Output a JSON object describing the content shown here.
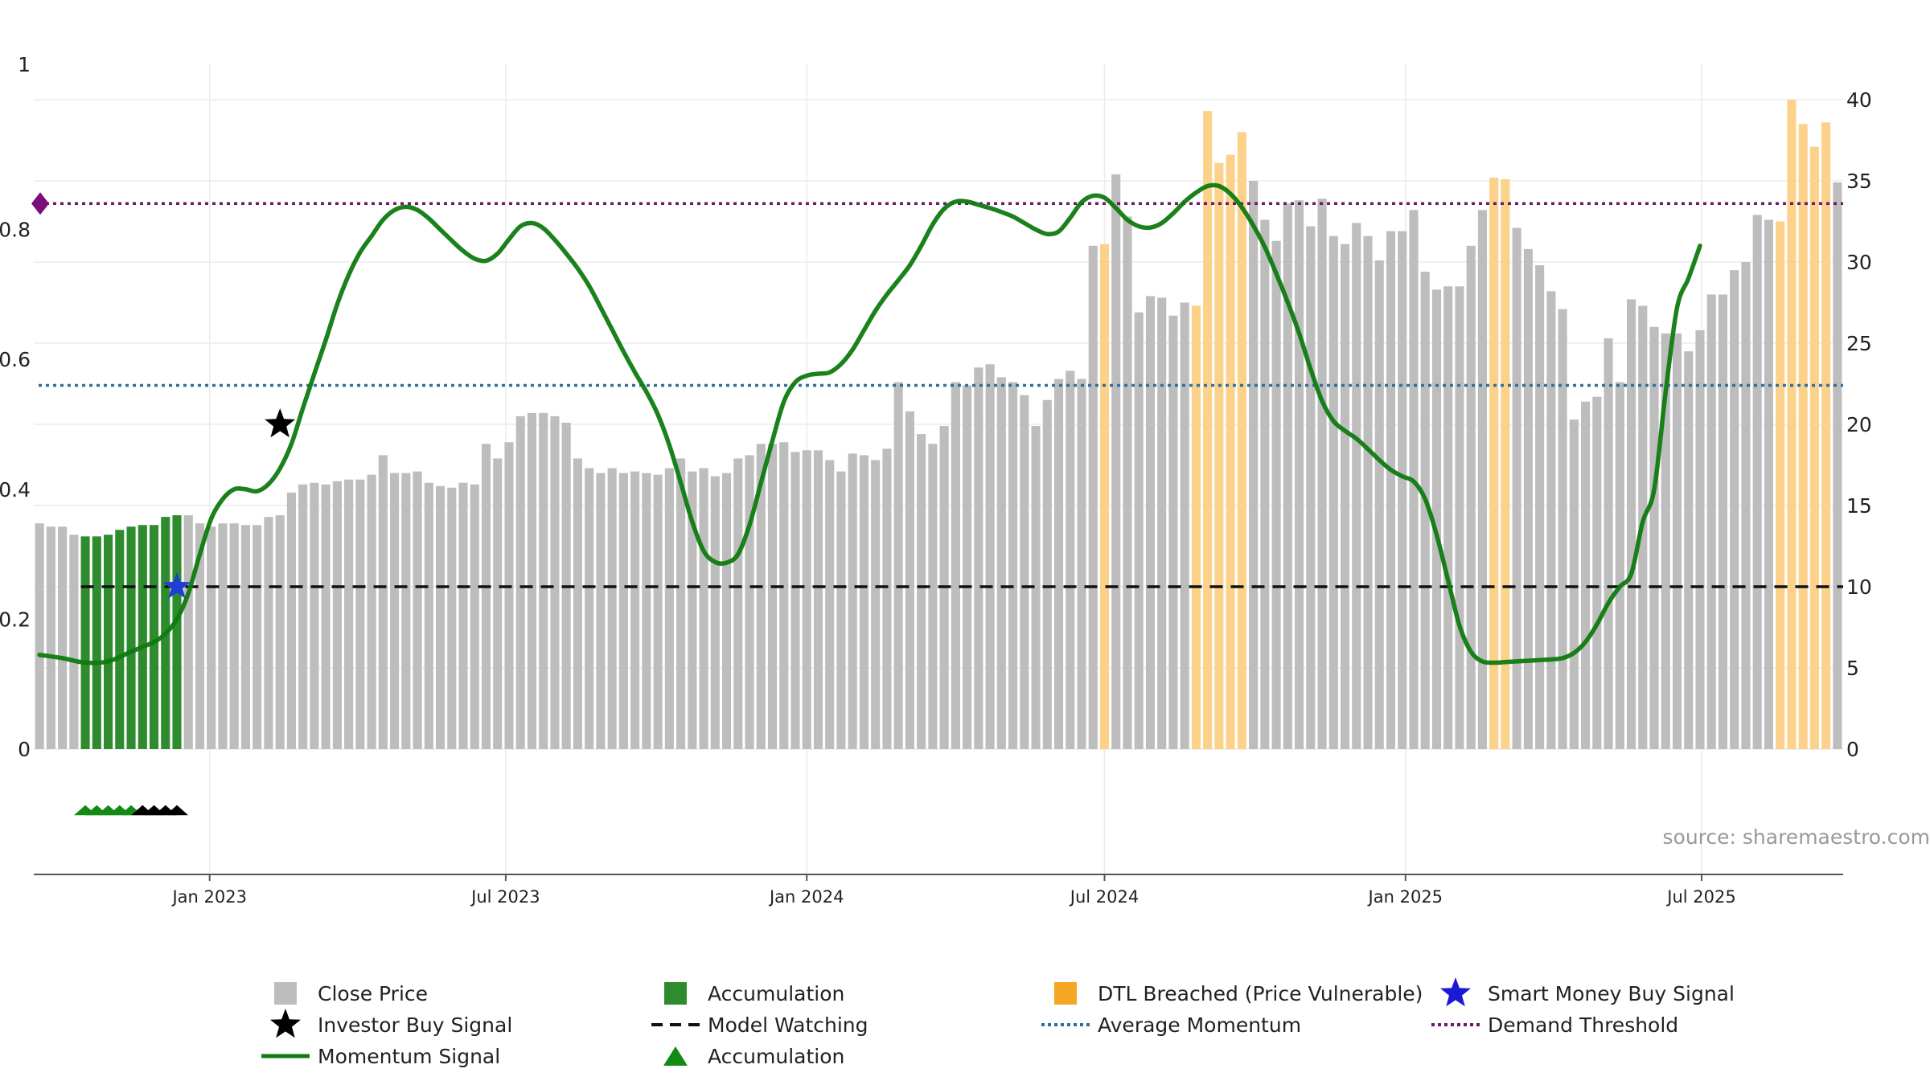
{
  "chart_data": {
    "type": "bar",
    "source_note": "source: sharemaestro.com",
    "left_axis": {
      "ylim": [
        0,
        1
      ],
      "ticks": [
        "0",
        "0.2",
        "0.4",
        "0.6",
        "0.8",
        "1"
      ]
    },
    "right_axis": {
      "ylim": [
        0,
        40
      ],
      "ticks": [
        "0",
        "5",
        "10",
        "15",
        "20",
        "25",
        "30",
        "35",
        "40"
      ]
    },
    "x_axis": {
      "start": "2022-09-19",
      "end": "2025-09-15",
      "ticks": [
        {
          "date": "2023-01-01",
          "label": "Jan 2023"
        },
        {
          "date": "2023-07-01",
          "label": "Jul 2023"
        },
        {
          "date": "2024-01-01",
          "label": "Jan 2024"
        },
        {
          "date": "2024-07-01",
          "label": "Jul 2024"
        },
        {
          "date": "2025-01-01",
          "label": "Jan 2025"
        },
        {
          "date": "2025-07-01",
          "label": "Jul 2025"
        }
      ]
    },
    "grid": true,
    "legend_placement": "bottom",
    "colors": {
      "close": "#bdbdbd",
      "accumulation": "#2e8b2e",
      "dtl": "#fcd28a",
      "momentum": "#0f7a0f",
      "average": "#2f6f99",
      "demand": "#6b1a6b",
      "watching": "#111111",
      "smart_money": "#1f3fd0",
      "investor": "#000000",
      "marker_green": "#138a13",
      "marker_black": "#000000",
      "demand_marker": "#7a0f7a"
    },
    "bars": {
      "name": "Close Price",
      "start_date": "2022-09-19",
      "interval_days": 7,
      "close_prices": [
        13.9,
        13.7,
        13.7,
        13.2,
        13.1,
        13.1,
        13.2,
        13.5,
        13.7,
        13.8,
        13.8,
        14.3,
        14.4,
        14.4,
        13.9,
        13.7,
        13.9,
        13.9,
        13.8,
        13.8,
        14.3,
        14.4,
        15.8,
        16.3,
        16.4,
        16.3,
        16.5,
        16.6,
        16.6,
        16.9,
        18.1,
        17.0,
        17.0,
        17.1,
        16.4,
        16.2,
        16.1,
        16.4,
        16.3,
        18.8,
        17.9,
        18.9,
        20.5,
        20.7,
        20.7,
        20.5,
        20.1,
        17.9,
        17.3,
        17.0,
        17.3,
        17.0,
        17.1,
        17.0,
        16.9,
        17.3,
        17.9,
        17.1,
        17.3,
        16.8,
        17.0,
        17.9,
        18.1,
        18.8,
        18.8,
        18.9,
        18.3,
        18.4,
        18.4,
        17.8,
        17.1,
        18.2,
        18.1,
        17.8,
        18.5,
        22.6,
        20.8,
        19.4,
        18.8,
        19.9,
        22.6,
        22.4,
        23.5,
        23.7,
        22.9,
        22.6,
        21.8,
        19.9,
        21.5,
        22.8,
        23.3,
        22.8,
        31.0,
        31.1,
        35.4,
        32.8,
        26.9,
        27.9,
        27.8,
        26.7,
        27.5,
        27.3,
        39.3,
        36.1,
        36.6,
        38.0,
        35.0,
        32.6,
        31.3,
        33.6,
        33.8,
        32.2,
        33.9,
        31.6,
        31.1,
        32.4,
        31.6,
        30.1,
        31.9,
        31.9,
        33.2,
        29.4,
        28.3,
        28.5,
        28.5,
        31.0,
        33.2,
        35.2,
        35.1,
        32.1,
        30.8,
        29.8,
        28.2,
        27.1,
        20.3,
        21.4,
        21.7,
        25.3,
        22.6,
        27.7,
        27.3,
        26.0,
        25.6,
        25.6,
        24.5,
        25.8,
        28.0,
        28.0,
        29.5,
        30.0,
        32.9,
        32.6,
        32.5,
        40.0,
        38.5,
        37.1,
        38.6,
        34.9
      ],
      "accumulation_index": [
        4,
        5,
        6,
        7,
        8,
        9,
        10,
        11,
        12
      ],
      "dtl_breached_index": [
        93,
        101,
        102,
        103,
        104,
        105,
        127,
        128,
        152,
        153,
        154,
        155,
        156
      ]
    },
    "momentum": {
      "name": "Momentum Signal",
      "points": [
        [
          0,
          0.145
        ],
        [
          2,
          0.14
        ],
        [
          4,
          0.133
        ],
        [
          6,
          0.135
        ],
        [
          8,
          0.15
        ],
        [
          10,
          0.165
        ],
        [
          11,
          0.178
        ],
        [
          12,
          0.2
        ],
        [
          13,
          0.24
        ],
        [
          14,
          0.3
        ],
        [
          15,
          0.355
        ],
        [
          16,
          0.385
        ],
        [
          17,
          0.4
        ],
        [
          18,
          0.4
        ],
        [
          19,
          0.397
        ],
        [
          20,
          0.408
        ],
        [
          21,
          0.432
        ],
        [
          22,
          0.47
        ],
        [
          23,
          0.525
        ],
        [
          24,
          0.578
        ],
        [
          25,
          0.63
        ],
        [
          26,
          0.685
        ],
        [
          27,
          0.73
        ],
        [
          28,
          0.765
        ],
        [
          29,
          0.79
        ],
        [
          30,
          0.815
        ],
        [
          31,
          0.83
        ],
        [
          32,
          0.835
        ],
        [
          33,
          0.83
        ],
        [
          34,
          0.817
        ],
        [
          35,
          0.8
        ],
        [
          36,
          0.783
        ],
        [
          37,
          0.767
        ],
        [
          38,
          0.755
        ],
        [
          39,
          0.752
        ],
        [
          40,
          0.763
        ],
        [
          41,
          0.785
        ],
        [
          42,
          0.805
        ],
        [
          43,
          0.81
        ],
        [
          44,
          0.802
        ],
        [
          45,
          0.784
        ],
        [
          46,
          0.763
        ],
        [
          47,
          0.74
        ],
        [
          48,
          0.713
        ],
        [
          49,
          0.68
        ],
        [
          50,
          0.646
        ],
        [
          51,
          0.612
        ],
        [
          52,
          0.58
        ],
        [
          53,
          0.55
        ],
        [
          54,
          0.515
        ],
        [
          55,
          0.468
        ],
        [
          56,
          0.41
        ],
        [
          57,
          0.35
        ],
        [
          58,
          0.305
        ],
        [
          59,
          0.288
        ],
        [
          60,
          0.287
        ],
        [
          61,
          0.3
        ],
        [
          62,
          0.345
        ],
        [
          63,
          0.41
        ],
        [
          64,
          0.475
        ],
        [
          65,
          0.535
        ],
        [
          66,
          0.565
        ],
        [
          67,
          0.575
        ],
        [
          68,
          0.578
        ],
        [
          69,
          0.58
        ],
        [
          70,
          0.593
        ],
        [
          71,
          0.615
        ],
        [
          72,
          0.645
        ],
        [
          73,
          0.675
        ],
        [
          74,
          0.7
        ],
        [
          75,
          0.722
        ],
        [
          76,
          0.745
        ],
        [
          77,
          0.775
        ],
        [
          78,
          0.808
        ],
        [
          79,
          0.832
        ],
        [
          80,
          0.843
        ],
        [
          81,
          0.843
        ],
        [
          82,
          0.838
        ],
        [
          83,
          0.833
        ],
        [
          84,
          0.827
        ],
        [
          85,
          0.82
        ],
        [
          86,
          0.81
        ],
        [
          87,
          0.8
        ],
        [
          88,
          0.793
        ],
        [
          89,
          0.797
        ],
        [
          90,
          0.818
        ],
        [
          91,
          0.842
        ],
        [
          92,
          0.852
        ],
        [
          93,
          0.849
        ],
        [
          94,
          0.833
        ],
        [
          95,
          0.815
        ],
        [
          96,
          0.805
        ],
        [
          97,
          0.803
        ],
        [
          98,
          0.81
        ],
        [
          99,
          0.825
        ],
        [
          100,
          0.843
        ],
        [
          101,
          0.857
        ],
        [
          102,
          0.867
        ],
        [
          103,
          0.867
        ],
        [
          104,
          0.855
        ],
        [
          105,
          0.834
        ],
        [
          106,
          0.806
        ],
        [
          107,
          0.773
        ],
        [
          108,
          0.732
        ],
        [
          109,
          0.688
        ],
        [
          110,
          0.64
        ],
        [
          111,
          0.585
        ],
        [
          112,
          0.536
        ],
        [
          113,
          0.505
        ],
        [
          114,
          0.49
        ],
        [
          115,
          0.478
        ],
        [
          116,
          0.462
        ],
        [
          117,
          0.445
        ],
        [
          118,
          0.43
        ],
        [
          119,
          0.42
        ],
        [
          120,
          0.412
        ],
        [
          121,
          0.385
        ],
        [
          122,
          0.33
        ],
        [
          123,
          0.26
        ],
        [
          124,
          0.19
        ],
        [
          125,
          0.15
        ],
        [
          126,
          0.135
        ],
        [
          127,
          0.133
        ],
        [
          128,
          0.134
        ],
        [
          129,
          0.135
        ],
        [
          130,
          0.136
        ],
        [
          131,
          0.137
        ],
        [
          132,
          0.138
        ],
        [
          133,
          0.14
        ],
        [
          134,
          0.148
        ],
        [
          135,
          0.165
        ],
        [
          136,
          0.192
        ],
        [
          137,
          0.225
        ],
        [
          138,
          0.25
        ],
        [
          139,
          0.27
        ],
        [
          140,
          0.35
        ],
        [
          141,
          0.4
        ],
        [
          142,
          0.55
        ],
        [
          143,
          0.68
        ],
        [
          144,
          0.725
        ],
        [
          145,
          0.775
        ]
      ]
    },
    "reference_lines": {
      "average_momentum": 0.56,
      "demand_threshold": 0.84,
      "model_watching": 0.25
    },
    "signals": {
      "investor_buy": {
        "index": 21,
        "value": 0.5
      },
      "smart_money_buy": {
        "index": 12,
        "value": 0.25
      },
      "demand_marker_value": 0.84
    },
    "accumulation_markers": {
      "green_index": [
        4,
        5,
        6,
        7,
        8
      ],
      "black_index": [
        9,
        10,
        11,
        12
      ]
    },
    "legend": [
      {
        "label": "Close Price",
        "symbol": "square",
        "color": "#bdbdbd"
      },
      {
        "label": "Accumulation",
        "symbol": "square",
        "color": "#2e8b2e"
      },
      {
        "label": "DTL Breached (Price Vulnerable)",
        "symbol": "square",
        "color": "#f5a623"
      },
      {
        "label": "Smart Money Buy Signal",
        "symbol": "star",
        "color": "#1a1ad6"
      },
      {
        "label": "Investor Buy Signal",
        "symbol": "star",
        "color": "#000000"
      },
      {
        "label": "Model Watching",
        "symbol": "dash",
        "color": "#111111"
      },
      {
        "label": "Average Momentum",
        "symbol": "dot",
        "color": "#2f6f99"
      },
      {
        "label": "Demand Threshold",
        "symbol": "dot",
        "color": "#6b1a6b"
      },
      {
        "label": "Momentum Signal",
        "symbol": "line",
        "color": "#0f7a0f"
      },
      {
        "label": "Accumulation",
        "symbol": "triangle",
        "color": "#138a13"
      }
    ]
  }
}
